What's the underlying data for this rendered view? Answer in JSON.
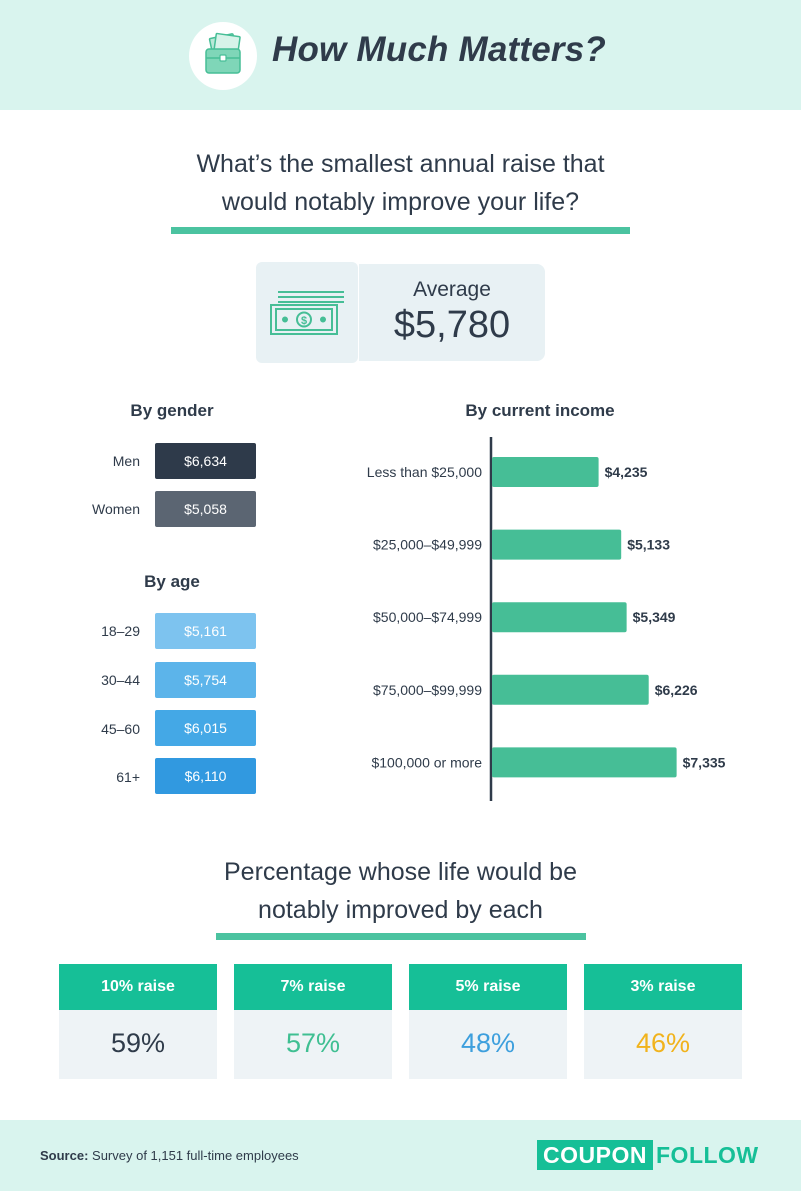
{
  "header": {
    "title": "How Much Matters?",
    "icon": "briefcase-money-icon"
  },
  "question": {
    "line1": "What’s the smallest annual raise that",
    "line2": "would notably improve your life?"
  },
  "average": {
    "label": "Average",
    "value": "$5,780",
    "icon": "money-bills-icon"
  },
  "by_gender": {
    "heading": "By gender",
    "rows": [
      {
        "label": "Men",
        "value": "$6,634",
        "color": "#2e3a4a"
      },
      {
        "label": "Women",
        "value": "$5,058",
        "color": "#5b6572"
      }
    ]
  },
  "by_age": {
    "heading": "By age",
    "rows": [
      {
        "label": "18–29",
        "value": "$5,161",
        "color": "#7dc3ef"
      },
      {
        "label": "30–44",
        "value": "$5,754",
        "color": "#5cb4ea"
      },
      {
        "label": "45–60",
        "value": "$6,015",
        "color": "#44a8e6"
      },
      {
        "label": "61+",
        "value": "$6,110",
        "color": "#3199e0"
      }
    ]
  },
  "chart_data": {
    "type": "bar",
    "orientation": "horizontal",
    "title": "By current income",
    "categories": [
      "Less than $25,000",
      "$25,000–$49,999",
      "$50,000–$74,999",
      "$75,000–$99,999",
      "$100,000 or more"
    ],
    "values": [
      4235,
      5133,
      5349,
      6226,
      7335
    ],
    "value_labels": [
      "$4,235",
      "$5,133",
      "$5,349",
      "$6,226",
      "$7,335"
    ],
    "bar_color": "#46be96",
    "grid": false
  },
  "percentage_section": {
    "line1": "Percentage whose life would be",
    "line2": "notably improved by each",
    "cards": [
      {
        "label": "10% raise",
        "value": "59%",
        "color": "#2f3b4a"
      },
      {
        "label": "7% raise",
        "value": "57%",
        "color": "#3fbf92"
      },
      {
        "label": "5% raise",
        "value": "48%",
        "color": "#3d9fdd"
      },
      {
        "label": "3% raise",
        "value": "46%",
        "color": "#f1b31c"
      }
    ]
  },
  "footer": {
    "source_label": "Source:",
    "source_text": " Survey of 1,151 full-time employees",
    "logo_part1": "COUPON",
    "logo_part2": "FOLLOW"
  }
}
